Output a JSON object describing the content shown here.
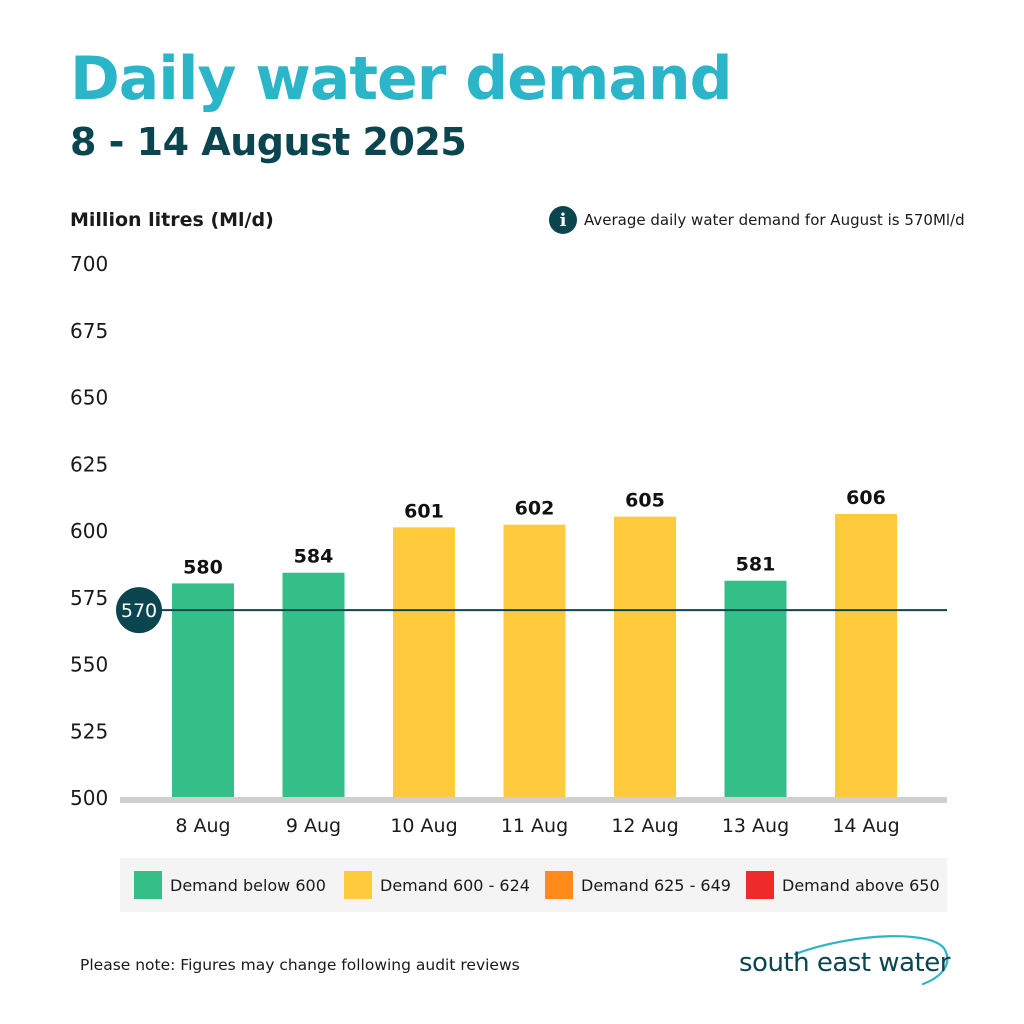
{
  "header": {
    "title": "Daily water demand",
    "subtitle": "8 - 14 August 2025"
  },
  "note": {
    "average_text": "Average daily water demand for August is 570Ml/d"
  },
  "chart_data": {
    "type": "bar",
    "ylabel": "Million litres (Ml/d)",
    "ylim": [
      500,
      700
    ],
    "yticks": [
      700,
      675,
      650,
      625,
      600,
      575,
      550,
      525,
      500
    ],
    "categories": [
      "8 Aug",
      "9 Aug",
      "10 Aug",
      "11 Aug",
      "12 Aug",
      "13 Aug",
      "14 Aug"
    ],
    "values": [
      580,
      584,
      601,
      602,
      605,
      581,
      606
    ],
    "average": {
      "value": 570,
      "label": "570"
    },
    "legend": [
      {
        "label": "Demand below 600",
        "color": "#35bf88"
      },
      {
        "label": "Demand 600 - 624",
        "color": "#ffcb3d"
      },
      {
        "label": "Demand 625 - 649",
        "color": "#ff8c1a"
      },
      {
        "label": "Demand above 650",
        "color": "#ee2a2a"
      }
    ],
    "colors": {
      "below_600": "#35bf88",
      "range_600_624": "#ffcb3d",
      "range_625_649": "#ff8c1a",
      "above_650": "#ee2a2a",
      "average_line": "#0b4650",
      "baseline": "#cfcfcf"
    }
  },
  "footer": {
    "note": "Please note: Figures may change following audit reviews",
    "logo_text": "south east water"
  }
}
